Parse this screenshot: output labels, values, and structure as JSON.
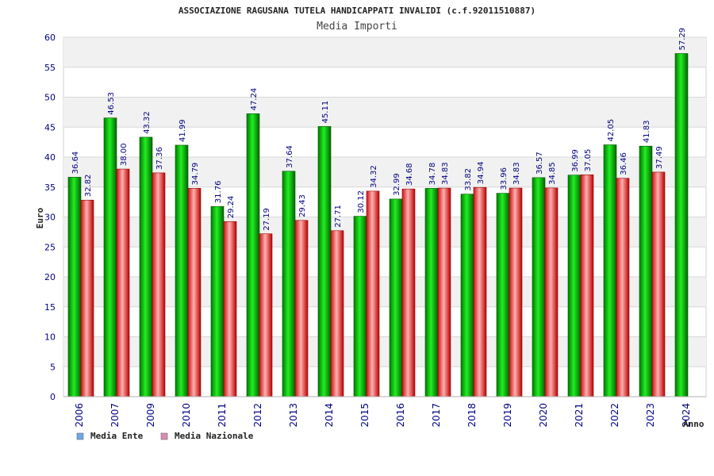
{
  "chart_data": {
    "type": "bar",
    "title": "ASSOCIAZIONE RAGUSANA TUTELA HANDICAPPATI INVALIDI (c.f.92011510887)",
    "subtitle": "Media Importi",
    "xlabel": "Anno",
    "ylabel": "Euro",
    "ylim": [
      0,
      60
    ],
    "yticks": [
      "0",
      "5",
      "10",
      "15",
      "20",
      "25",
      "30",
      "35",
      "40",
      "45",
      "50",
      "55",
      "60"
    ],
    "grid": true,
    "legend_position": "bottom-left",
    "categories": [
      "2006",
      "2007",
      "2009",
      "2010",
      "2011",
      "2012",
      "2013",
      "2014",
      "2015",
      "2016",
      "2017",
      "2018",
      "2019",
      "2020",
      "2021",
      "2022",
      "2023",
      "2024"
    ],
    "series": [
      {
        "name": "Media Ente",
        "color": "#00bb00",
        "legend_color": "#6fa8e8",
        "values": [
          36.64,
          46.53,
          43.32,
          41.99,
          31.76,
          47.24,
          37.64,
          45.11,
          30.12,
          32.99,
          34.78,
          33.82,
          33.96,
          36.57,
          36.99,
          42.05,
          41.83,
          57.29
        ],
        "labels": [
          "36.64",
          "46.53",
          "43.32",
          "41.99",
          "31.76",
          "47.24",
          "37.64",
          "45.11",
          "30.12",
          "32.99",
          "34.78",
          "33.82",
          "33.96",
          "36.57",
          "36.99",
          "42.05",
          "41.83",
          "57.29"
        ]
      },
      {
        "name": "Media Nazionale",
        "color": "#ee2222",
        "legend_color": "#d98cb3",
        "values": [
          32.82,
          38.0,
          37.36,
          34.79,
          29.24,
          27.19,
          29.43,
          27.71,
          34.32,
          34.68,
          34.83,
          34.94,
          34.83,
          34.85,
          37.05,
          36.46,
          37.49,
          null
        ],
        "labels": [
          "32.82",
          "38.00",
          "37.36",
          "34.79",
          "29.24",
          "27.19",
          "29.43",
          "27.71",
          "34.32",
          "34.68",
          "34.83",
          "34.94",
          "34.83",
          "34.85",
          "37.05",
          "36.46",
          "37.49",
          ""
        ]
      }
    ]
  }
}
